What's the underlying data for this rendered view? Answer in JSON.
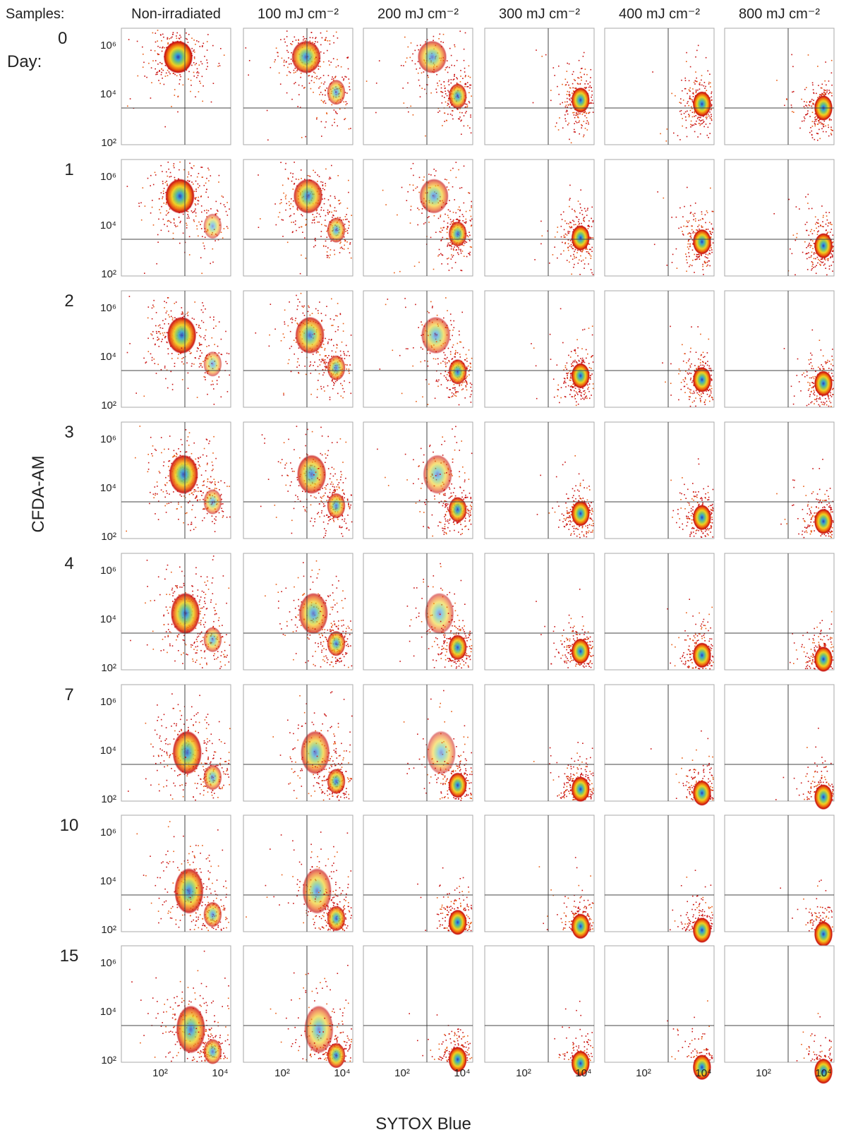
{
  "samples_label": "Samples:",
  "day_label": "Day:",
  "columns": [
    "Non-irradiated",
    "100  mJ cm⁻²",
    "200  mJ cm⁻²",
    "300  mJ cm⁻²",
    "400  mJ cm⁻²",
    "800  mJ cm⁻²"
  ],
  "rows": [
    "0",
    "1",
    "2",
    "3",
    "4",
    "7",
    "10",
    "15"
  ],
  "y_axis_title": "CFDA-AM",
  "x_axis_title": "SYTOX Blue",
  "y_ticks": [
    "10⁶",
    "10⁴",
    "10²"
  ],
  "x_ticks": [
    "10²",
    "10⁴"
  ]
}
